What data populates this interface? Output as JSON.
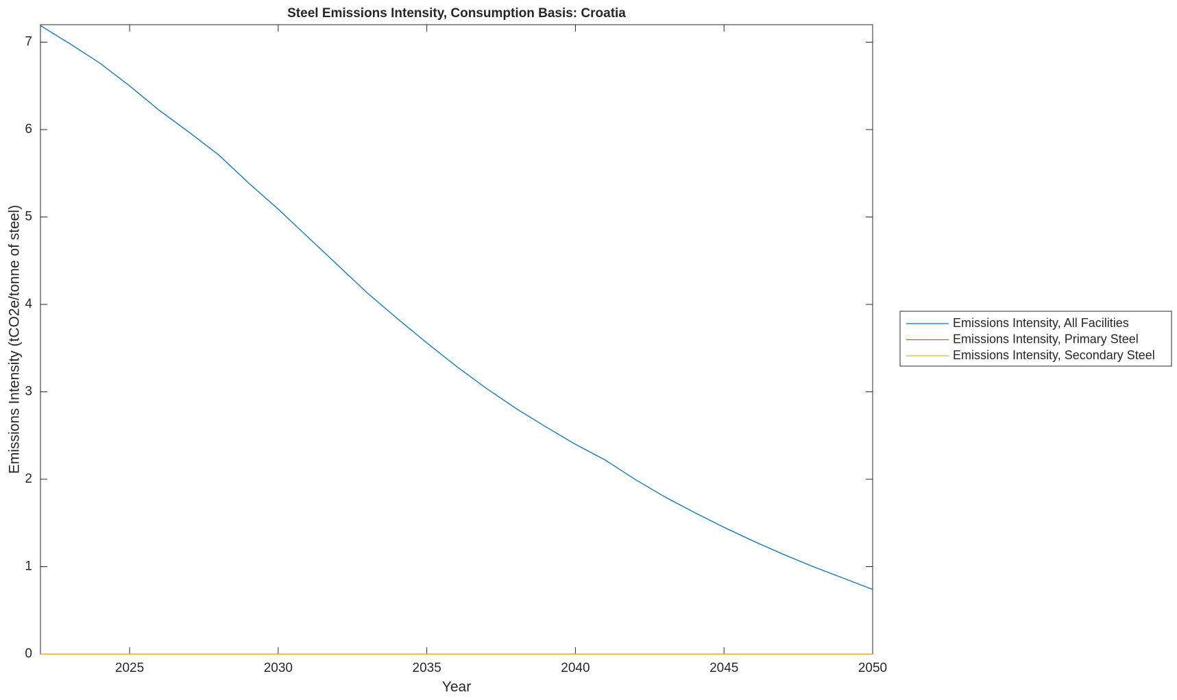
{
  "chart_data": {
    "type": "line",
    "title": "Steel Emissions Intensity, Consumption Basis: Croatia",
    "x_label": "Year",
    "y_label": "Emissions Intensity (tCO2e/tonne of steel)",
    "x": [
      2022,
      2023,
      2024,
      2025,
      2026,
      2027,
      2028,
      2029,
      2030,
      2031,
      2032,
      2033,
      2034,
      2035,
      2036,
      2037,
      2038,
      2039,
      2040,
      2041,
      2042,
      2043,
      2044,
      2045,
      2046,
      2047,
      2048,
      2049,
      2050
    ],
    "series": [
      {
        "name": "Emissions Intensity, All Facilities",
        "color": "#0072bd",
        "values": [
          7.19,
          6.98,
          6.76,
          6.5,
          6.22,
          5.97,
          5.71,
          5.39,
          5.09,
          4.77,
          4.45,
          4.13,
          3.84,
          3.56,
          3.29,
          3.04,
          2.81,
          2.6,
          2.4,
          2.22,
          2.0,
          1.8,
          1.62,
          1.45,
          1.29,
          1.14,
          1.0,
          0.87,
          0.74
        ]
      },
      {
        "name": "Emissions Intensity, Primary Steel",
        "color": "#d95319",
        "values": [
          0,
          0,
          0,
          0,
          0,
          0,
          0,
          0,
          0,
          0,
          0,
          0,
          0,
          0,
          0,
          0,
          0,
          0,
          0,
          0,
          0,
          0,
          0,
          0,
          0,
          0,
          0,
          0,
          0
        ]
      },
      {
        "name": "Emissions Intensity, Secondary Steel",
        "color": "#edb120",
        "values": [
          0,
          0,
          0,
          0,
          0,
          0,
          0,
          0,
          0,
          0,
          0,
          0,
          0,
          0,
          0,
          0,
          0,
          0,
          0,
          0,
          0,
          0,
          0,
          0,
          0,
          0,
          0,
          0,
          0
        ]
      }
    ],
    "xlim": [
      2022,
      2050
    ],
    "xticks": [
      2025,
      2030,
      2035,
      2040,
      2045,
      2050
    ],
    "ylim": [
      0,
      7.2
    ],
    "yticks": [
      0,
      1,
      2,
      3,
      4,
      5,
      6,
      7
    ],
    "grid": false,
    "legend": "outside-right"
  }
}
